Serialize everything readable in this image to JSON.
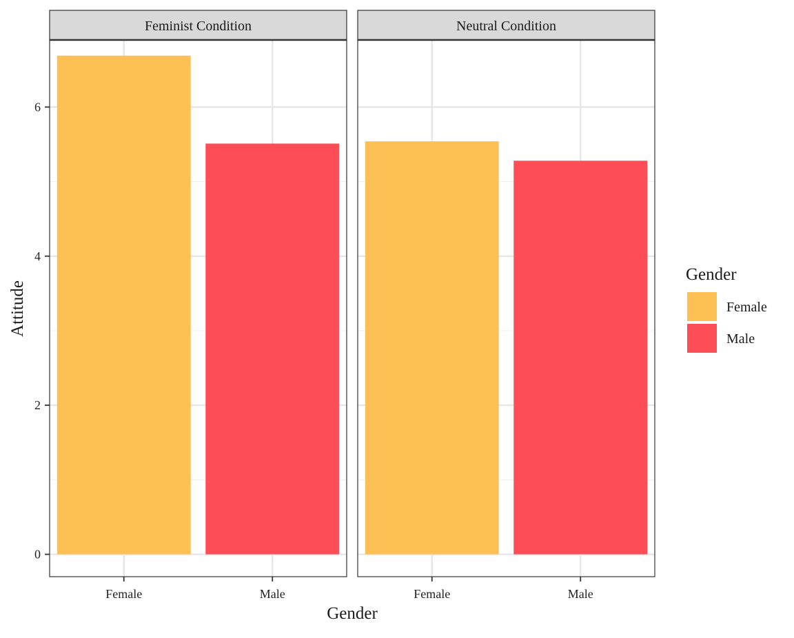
{
  "chart_data": {
    "type": "bar",
    "facets": [
      "Feminist Condition",
      "Neutral Condition"
    ],
    "categories": [
      "Female",
      "Male"
    ],
    "series": [
      {
        "facet": "Feminist Condition",
        "values": [
          6.69,
          5.51
        ]
      },
      {
        "facet": "Neutral Condition",
        "values": [
          5.54,
          5.28
        ]
      }
    ],
    "xlabel": "Gender",
    "ylabel": "Attitude",
    "ylim": [
      -0.3,
      6.9
    ],
    "yticks": [
      0,
      2,
      4,
      6
    ],
    "grid": true,
    "legend": {
      "title": "Gender",
      "placement": "right",
      "items": [
        {
          "label": "Female",
          "color": "#FCC055"
        },
        {
          "label": "Male",
          "color": "#FD4D56"
        }
      ]
    },
    "colors": {
      "Female": "#FCC055",
      "Male": "#FD4D56"
    }
  }
}
